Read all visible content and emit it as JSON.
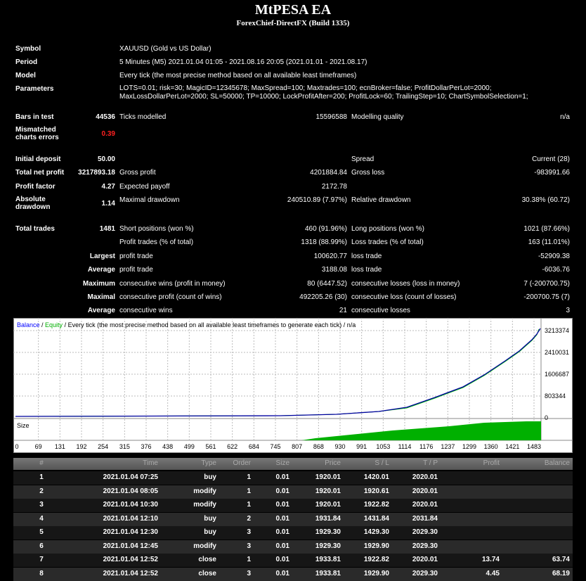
{
  "header": {
    "title": "MtPESA EA",
    "subtitle": "ForexChief-DirectFX (Build 1335)"
  },
  "summary": [
    {
      "label": "Symbol",
      "label2": "XAUUSD (Gold vs US Dollar)"
    },
    {
      "label": "Period",
      "label2": "5 Minutes (M5) 2021.01.04 01:05 - 2021.08.16 20:05 (2021.01.01 - 2021.08.17)"
    },
    {
      "label": "Model",
      "label2": "Every tick (the most precise method based on all available least timeframes)"
    },
    {
      "label": "Parameters",
      "label2": "LOTS=0.01; risk=30; MagicID=12345678; MaxSpread=100; Maxtrades=100; ecnBroker=false; ProfitDollarPerLot=2000; MaxLossDollarPerLot=2000; SL=50000; TP=10000; LockProfitAfter=200; ProfitLock=60; TrailingStep=10; ChartSymbolSelection=1;"
    },
    {
      "label": "Bars in test",
      "value": "44536",
      "label2": "Ticks modelled",
      "value2": "15596588",
      "label3": "Modelling quality",
      "value3": "n/a"
    },
    {
      "label": "Mismatched charts errors",
      "value": "0.39",
      "value_color": "#ff2020"
    },
    {
      "label": "Initial deposit",
      "value": "50.00",
      "label3": "Spread",
      "value3": "Current (28)"
    },
    {
      "label": "Total net profit",
      "value": "3217893.18",
      "label2": "Gross profit",
      "value2": "4201884.84",
      "label3": "Gross loss",
      "value3": "-983991.66"
    },
    {
      "label": "Profit factor",
      "value": "4.27",
      "label2": "Expected payoff",
      "value2": "2172.78"
    },
    {
      "label": "Absolute drawdown",
      "value": "1.14",
      "label2": "Maximal drawdown",
      "value2": "240510.89 (7.97%)",
      "label3": "Relative drawdown",
      "value3": "30.38% (60.72)"
    },
    {
      "label": "Total trades",
      "value": "1481",
      "label2": "Short positions (won %)",
      "value2": "460 (91.96%)",
      "label3": "Long positions (won %)",
      "value3": "1021 (87.66%)"
    },
    {
      "label2": "Profit trades (% of total)",
      "value2": "1318 (88.99%)",
      "label3": "Loss trades (% of total)",
      "value3": "163 (11.01%)"
    },
    {
      "value": "Largest",
      "label2": "profit trade",
      "value2": "100620.77",
      "label3": "loss trade",
      "value3": "-52909.38"
    },
    {
      "value": "Average",
      "label2": "profit trade",
      "value2": "3188.08",
      "label3": "loss trade",
      "value3": "-6036.76"
    },
    {
      "value": "Maximum",
      "label2": "consecutive wins (profit in money)",
      "value2": "80 (6447.52)",
      "label3": "consecutive losses (loss in money)",
      "value3": "7 (-200700.75)"
    },
    {
      "value": "Maximal",
      "label2": "consecutive profit (count of wins)",
      "value2": "492205.26 (30)",
      "label3": "consecutive loss (count of losses)",
      "value3": "-200700.75 (7)"
    },
    {
      "value": "Average",
      "label2": "consecutive wins",
      "value2": "21",
      "label3": "consecutive losses",
      "value3": "3"
    }
  ],
  "chart": {
    "title": [
      {
        "text": "Balance",
        "color": "#0000ff"
      },
      {
        "text": " / ",
        "color": "#000000"
      },
      {
        "text": "Equity",
        "color": "#00b000"
      },
      {
        "text": " / Every tick (the most precise method based on all available least timeframes to generate each tick) / n/a",
        "color": "#000000"
      }
    ],
    "size_label": "Size",
    "yticks": [
      0,
      803344,
      1606687,
      2410031,
      3213374
    ],
    "xticks": [
      0,
      69,
      131,
      192,
      254,
      315,
      376,
      438,
      499,
      561,
      622,
      684,
      745,
      807,
      868,
      930,
      991,
      1053,
      1114,
      1176,
      1237,
      1299,
      1360,
      1421,
      1483
    ]
  },
  "table": {
    "columns": [
      "#",
      "Time",
      "Type",
      "Order",
      "Size",
      "Price",
      "S / L",
      "T / P",
      "Profit",
      "Balance"
    ],
    "rows": [
      [
        "1",
        "2021.01.04 07:25",
        "buy",
        "1",
        "0.01",
        "1920.01",
        "1420.01",
        "2020.01"
      ],
      [
        "2",
        "2021.01.04 08:05",
        "modify",
        "1",
        "0.01",
        "1920.01",
        "1920.61",
        "2020.01"
      ],
      [
        "3",
        "2021.01.04 10:30",
        "modify",
        "1",
        "0.01",
        "1920.01",
        "1922.82",
        "2020.01"
      ],
      [
        "4",
        "2021.01.04 12:10",
        "buy",
        "2",
        "0.01",
        "1931.84",
        "1431.84",
        "2031.84"
      ],
      [
        "5",
        "2021.01.04 12:30",
        "buy",
        "3",
        "0.01",
        "1929.30",
        "1429.30",
        "2029.30"
      ],
      [
        "6",
        "2021.01.04 12:45",
        "modify",
        "3",
        "0.01",
        "1929.30",
        "1929.90",
        "2029.30"
      ],
      [
        "7",
        "2021.01.04 12:52",
        "close",
        "1",
        "0.01",
        "1933.81",
        "1922.82",
        "2020.01",
        "13.74",
        "63.74"
      ],
      [
        "8",
        "2021.01.04 12:52",
        "close",
        "3",
        "0.01",
        "1933.81",
        "1929.90",
        "2029.30",
        "4.45",
        "68.19"
      ]
    ]
  }
}
